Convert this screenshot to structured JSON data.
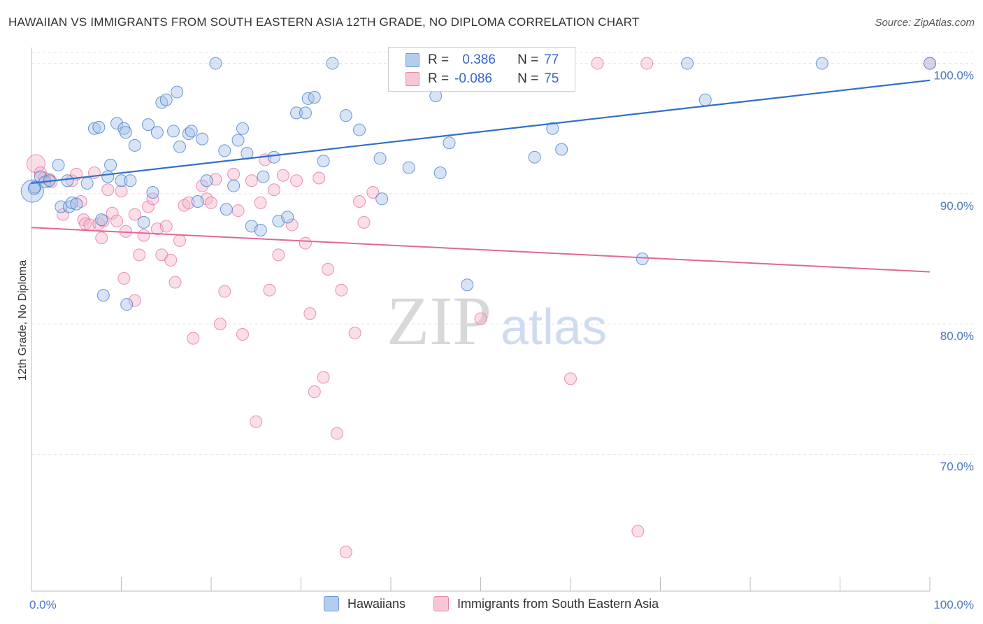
{
  "title": "HAWAIIAN VS IMMIGRANTS FROM SOUTH EASTERN ASIA 12TH GRADE, NO DIPLOMA CORRELATION CHART",
  "source": "Source: ZipAtlas.com",
  "watermark": {
    "zip": "ZIP",
    "atlas": "atlas"
  },
  "colors": {
    "blue": "#3070c8",
    "blue_fill": "#a8c4ec",
    "pink": "#e06898",
    "pink_fill": "#f4b6cc",
    "tick_text": "#4a78c2",
    "grid": "#e3e3e3"
  },
  "legend": {
    "r_label": "R =",
    "n_label": "N =",
    "hawaiians": {
      "r": " 0.386",
      "n": "77"
    },
    "immigrants": {
      "r": "-0.086",
      "n": "75"
    }
  },
  "bottom_legend": {
    "hawaiians": "Hawaiians",
    "immigrants": "Immigrants from South Eastern Asia"
  },
  "chart_data": {
    "type": "scatter",
    "title": "HAWAIIAN VS IMMIGRANTS FROM SOUTH EASTERN ASIA 12TH GRADE, NO DIPLOMA CORRELATION CHART",
    "xlabel": "",
    "ylabel": "12th Grade, No Diploma",
    "xlim": [
      0,
      100
    ],
    "ylim": [
      59.5,
      102.5
    ],
    "x_tick_labels": [
      "0.0%",
      "100.0%"
    ],
    "y_ticks": [
      70,
      80,
      90,
      100
    ],
    "y_tick_labels": [
      "70.0%",
      "80.0%",
      "90.0%",
      "100.0%"
    ],
    "grid": true,
    "legend_position": "top-center",
    "series": [
      {
        "name": "Hawaiians",
        "r": 0.386,
        "n": 77,
        "trend": {
          "x": [
            0,
            100
          ],
          "y": [
            90.8,
            98.7
          ]
        },
        "points": [
          [
            0.1,
            90.2
          ],
          [
            0.4,
            90.5
          ],
          [
            1.0,
            91.3
          ],
          [
            1.5,
            90.9
          ],
          [
            2.0,
            91.0
          ],
          [
            3.0,
            92.2
          ],
          [
            3.3,
            89.0
          ],
          [
            4.0,
            91.0
          ],
          [
            4.2,
            89.0
          ],
          [
            4.5,
            89.3
          ],
          [
            5.0,
            89.2
          ],
          [
            6.2,
            90.8
          ],
          [
            7.0,
            95.0
          ],
          [
            7.5,
            95.1
          ],
          [
            7.8,
            88.0
          ],
          [
            8.0,
            82.2
          ],
          [
            8.5,
            91.3
          ],
          [
            8.8,
            92.2
          ],
          [
            9.5,
            95.4
          ],
          [
            10.0,
            91.0
          ],
          [
            10.3,
            95.0
          ],
          [
            10.5,
            94.7
          ],
          [
            10.6,
            81.5
          ],
          [
            11.0,
            91.0
          ],
          [
            11.5,
            93.7
          ],
          [
            12.5,
            87.8
          ],
          [
            13.0,
            95.3
          ],
          [
            13.5,
            90.1
          ],
          [
            14.0,
            94.7
          ],
          [
            14.5,
            97.0
          ],
          [
            15.0,
            97.2
          ],
          [
            15.8,
            94.8
          ],
          [
            16.2,
            97.8
          ],
          [
            16.5,
            93.6
          ],
          [
            17.5,
            94.6
          ],
          [
            17.8,
            94.8
          ],
          [
            18.5,
            89.4
          ],
          [
            19.0,
            94.2
          ],
          [
            19.5,
            91.0
          ],
          [
            20.5,
            100.0
          ],
          [
            21.5,
            93.3
          ],
          [
            21.7,
            88.8
          ],
          [
            22.5,
            90.6
          ],
          [
            23.0,
            94.1
          ],
          [
            23.5,
            95.0
          ],
          [
            24.0,
            93.1
          ],
          [
            24.5,
            87.5
          ],
          [
            25.5,
            87.2
          ],
          [
            25.8,
            91.3
          ],
          [
            27.0,
            92.8
          ],
          [
            27.5,
            87.9
          ],
          [
            28.5,
            88.2
          ],
          [
            29.5,
            96.2
          ],
          [
            30.5,
            96.2
          ],
          [
            30.8,
            97.3
          ],
          [
            31.5,
            97.4
          ],
          [
            32.5,
            92.5
          ],
          [
            33.5,
            100.0
          ],
          [
            35.0,
            96.0
          ],
          [
            36.5,
            94.9
          ],
          [
            38.8,
            92.7
          ],
          [
            39.0,
            89.6
          ],
          [
            42.0,
            92.0
          ],
          [
            45.0,
            97.5
          ],
          [
            45.5,
            91.6
          ],
          [
            46.5,
            93.9
          ],
          [
            48.0,
            100.0
          ],
          [
            48.5,
            83.0
          ],
          [
            56.0,
            92.8
          ],
          [
            58.0,
            95.0
          ],
          [
            59.0,
            93.4
          ],
          [
            68.0,
            85.0
          ],
          [
            73.0,
            100.0
          ],
          [
            75.0,
            97.2
          ],
          [
            88.0,
            100.0
          ],
          [
            100.0,
            100.0
          ],
          [
            0.3,
            90.4
          ]
        ]
      },
      {
        "name": "Immigrants from South Eastern Asia",
        "r": -0.086,
        "n": 75,
        "trend": {
          "x": [
            0,
            100
          ],
          "y": [
            87.4,
            84.0
          ]
        },
        "points": [
          [
            0.5,
            92.3
          ],
          [
            1.0,
            91.6
          ],
          [
            1.4,
            91.2
          ],
          [
            2.0,
            91.1
          ],
          [
            2.2,
            90.9
          ],
          [
            3.5,
            88.4
          ],
          [
            4.5,
            91.0
          ],
          [
            5.0,
            91.5
          ],
          [
            5.5,
            89.4
          ],
          [
            5.8,
            88.0
          ],
          [
            6.0,
            87.7
          ],
          [
            6.5,
            87.6
          ],
          [
            7.0,
            91.6
          ],
          [
            7.5,
            87.7
          ],
          [
            7.8,
            86.6
          ],
          [
            8.0,
            87.9
          ],
          [
            8.5,
            90.3
          ],
          [
            9.0,
            88.5
          ],
          [
            9.5,
            87.9
          ],
          [
            10.0,
            90.2
          ],
          [
            10.3,
            83.5
          ],
          [
            10.5,
            87.1
          ],
          [
            11.5,
            81.8
          ],
          [
            11.5,
            88.4
          ],
          [
            12.0,
            85.3
          ],
          [
            12.5,
            86.8
          ],
          [
            13.0,
            89.0
          ],
          [
            13.5,
            89.6
          ],
          [
            14.0,
            87.3
          ],
          [
            14.5,
            85.3
          ],
          [
            15.0,
            87.5
          ],
          [
            15.5,
            84.9
          ],
          [
            16.0,
            83.2
          ],
          [
            16.5,
            86.4
          ],
          [
            17.0,
            89.1
          ],
          [
            17.5,
            89.3
          ],
          [
            18.0,
            78.9
          ],
          [
            19.0,
            90.6
          ],
          [
            19.5,
            89.6
          ],
          [
            20.0,
            89.3
          ],
          [
            20.5,
            91.1
          ],
          [
            21.0,
            80.0
          ],
          [
            21.5,
            82.5
          ],
          [
            22.5,
            91.5
          ],
          [
            23.0,
            88.7
          ],
          [
            23.5,
            79.2
          ],
          [
            24.5,
            91.0
          ],
          [
            25.0,
            72.5
          ],
          [
            25.5,
            89.3
          ],
          [
            26.0,
            92.6
          ],
          [
            26.5,
            82.6
          ],
          [
            27.0,
            90.3
          ],
          [
            27.5,
            85.3
          ],
          [
            28.0,
            91.4
          ],
          [
            29.0,
            87.6
          ],
          [
            29.5,
            91.0
          ],
          [
            30.5,
            86.2
          ],
          [
            31.0,
            80.8
          ],
          [
            31.5,
            74.8
          ],
          [
            32.0,
            91.2
          ],
          [
            32.5,
            75.9
          ],
          [
            33.0,
            84.2
          ],
          [
            34.0,
            71.6
          ],
          [
            34.5,
            82.6
          ],
          [
            35.0,
            62.5
          ],
          [
            36.0,
            79.3
          ],
          [
            36.5,
            89.4
          ],
          [
            37.0,
            87.8
          ],
          [
            38.0,
            90.1
          ],
          [
            50.0,
            80.4
          ],
          [
            60.0,
            75.8
          ],
          [
            63.0,
            100.0
          ],
          [
            67.5,
            64.1
          ],
          [
            68.5,
            100.0
          ],
          [
            100.0,
            100.0
          ]
        ]
      }
    ]
  }
}
